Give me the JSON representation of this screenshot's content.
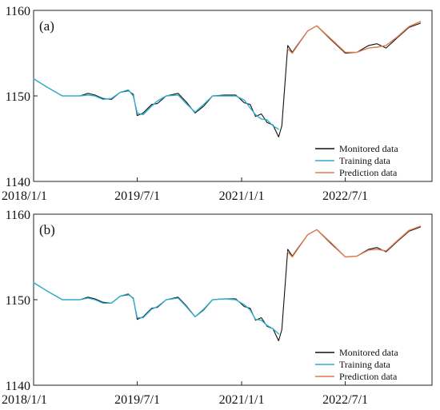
{
  "chart_data": [
    {
      "panel_label": "(a)",
      "type": "line",
      "x_type": "date",
      "xlim": [
        "2018-01-01",
        "2023-10-01"
      ],
      "ylim": [
        1140,
        1160
      ],
      "yticks": [
        1140,
        1150,
        1160
      ],
      "xticks": [
        "2018/1/1",
        "2019/7/1",
        "2021/1/1",
        "2022/7/1"
      ],
      "xtick_dates": [
        "2018-01-01",
        "2019-07-01",
        "2021-01-01",
        "2022-07-01"
      ],
      "grid": false,
      "legend_position": "bottom-right",
      "series": [
        {
          "name": "Monitored data",
          "color": "#111111",
          "points": [
            [
              "2018-01-01",
              1152.0
            ],
            [
              "2018-03-15",
              1151.0
            ],
            [
              "2018-06-01",
              1150.0
            ],
            [
              "2018-09-01",
              1150.0
            ],
            [
              "2018-10-15",
              1150.3
            ],
            [
              "2018-11-20",
              1150.1
            ],
            [
              "2019-01-01",
              1149.7
            ],
            [
              "2019-02-15",
              1149.6
            ],
            [
              "2019-04-01",
              1150.4
            ],
            [
              "2019-05-15",
              1150.6
            ],
            [
              "2019-06-10",
              1150.2
            ],
            [
              "2019-07-01",
              1147.7
            ],
            [
              "2019-08-01",
              1148.0
            ],
            [
              "2019-09-15",
              1149.0
            ],
            [
              "2019-10-15",
              1149.1
            ],
            [
              "2019-12-01",
              1150.0
            ],
            [
              "2020-02-01",
              1150.3
            ],
            [
              "2020-03-15",
              1149.3
            ],
            [
              "2020-05-01",
              1148.0
            ],
            [
              "2020-06-15",
              1148.8
            ],
            [
              "2020-08-01",
              1150.0
            ],
            [
              "2020-10-01",
              1150.1
            ],
            [
              "2020-12-01",
              1150.1
            ],
            [
              "2021-01-15",
              1149.2
            ],
            [
              "2021-02-15",
              1149.0
            ],
            [
              "2021-03-15",
              1147.6
            ],
            [
              "2021-04-15",
              1147.9
            ],
            [
              "2021-05-15",
              1146.9
            ],
            [
              "2021-06-15",
              1146.6
            ],
            [
              "2021-07-15",
              1145.2
            ],
            [
              "2021-08-01",
              1146.5
            ],
            [
              "2021-09-01",
              1155.9
            ],
            [
              "2021-09-25",
              1155.1
            ],
            [
              "2021-10-20",
              1155.9
            ],
            [
              "2021-12-15",
              1157.6
            ],
            [
              "2022-02-01",
              1158.2
            ],
            [
              "2022-04-15",
              1156.6
            ],
            [
              "2022-07-01",
              1155.0
            ],
            [
              "2022-09-01",
              1155.1
            ],
            [
              "2022-11-01",
              1155.9
            ],
            [
              "2022-12-15",
              1156.1
            ],
            [
              "2023-02-01",
              1155.6
            ],
            [
              "2023-04-01",
              1156.8
            ],
            [
              "2023-06-01",
              1158.0
            ],
            [
              "2023-08-01",
              1158.5
            ]
          ]
        },
        {
          "name": "Training data",
          "color": "#2eaed0",
          "points": [
            [
              "2018-01-01",
              1152.0
            ],
            [
              "2018-03-15",
              1151.0
            ],
            [
              "2018-06-01",
              1150.0
            ],
            [
              "2018-09-01",
              1150.0
            ],
            [
              "2018-10-15",
              1150.1
            ],
            [
              "2018-11-20",
              1150.0
            ],
            [
              "2019-01-01",
              1149.6
            ],
            [
              "2019-02-15",
              1149.7
            ],
            [
              "2019-04-01",
              1150.4
            ],
            [
              "2019-05-15",
              1150.7
            ],
            [
              "2019-06-10",
              1150.0
            ],
            [
              "2019-07-01",
              1148.0
            ],
            [
              "2019-08-01",
              1147.8
            ],
            [
              "2019-09-15",
              1148.8
            ],
            [
              "2019-10-15",
              1149.4
            ],
            [
              "2019-12-01",
              1150.0
            ],
            [
              "2020-02-01",
              1150.1
            ],
            [
              "2020-03-15",
              1149.1
            ],
            [
              "2020-05-01",
              1148.1
            ],
            [
              "2020-06-15",
              1149.0
            ],
            [
              "2020-08-01",
              1150.0
            ],
            [
              "2020-10-01",
              1150.0
            ],
            [
              "2020-12-01",
              1150.0
            ],
            [
              "2021-01-15",
              1149.5
            ],
            [
              "2021-02-15",
              1148.6
            ],
            [
              "2021-03-15",
              1147.8
            ],
            [
              "2021-04-15",
              1147.3
            ],
            [
              "2021-05-15",
              1147.2
            ],
            [
              "2021-06-15",
              1146.5
            ],
            [
              "2021-07-15",
              1146.1
            ]
          ]
        },
        {
          "name": "Prediction data",
          "color": "#e07a4a",
          "points": [
            [
              "2021-09-01",
              1155.5
            ],
            [
              "2021-09-25",
              1155.0
            ],
            [
              "2021-10-20",
              1155.8
            ],
            [
              "2021-12-15",
              1157.6
            ],
            [
              "2022-02-01",
              1158.2
            ],
            [
              "2022-04-15",
              1156.7
            ],
            [
              "2022-07-01",
              1155.1
            ],
            [
              "2022-09-01",
              1155.1
            ],
            [
              "2022-11-01",
              1155.6
            ],
            [
              "2022-12-15",
              1155.7
            ],
            [
              "2023-02-01",
              1155.9
            ],
            [
              "2023-04-01",
              1156.9
            ],
            [
              "2023-06-01",
              1158.1
            ],
            [
              "2023-08-01",
              1158.7
            ]
          ]
        }
      ]
    },
    {
      "panel_label": "(b)",
      "type": "line",
      "x_type": "date",
      "xlim": [
        "2018-01-01",
        "2023-10-01"
      ],
      "ylim": [
        1140,
        1160
      ],
      "yticks": [
        1140,
        1150,
        1160
      ],
      "xticks": [
        "2018/1/1",
        "2019/7/1",
        "2021/1/1",
        "2022/7/1"
      ],
      "xtick_dates": [
        "2018-01-01",
        "2019-07-01",
        "2021-01-01",
        "2022-07-01"
      ],
      "grid": false,
      "legend_position": "bottom-right",
      "series": [
        {
          "name": "Monitored data",
          "color": "#111111",
          "points": [
            [
              "2018-01-01",
              1152.0
            ],
            [
              "2018-03-15",
              1151.0
            ],
            [
              "2018-06-01",
              1150.0
            ],
            [
              "2018-09-01",
              1150.0
            ],
            [
              "2018-10-15",
              1150.3
            ],
            [
              "2018-11-20",
              1150.1
            ],
            [
              "2019-01-01",
              1149.7
            ],
            [
              "2019-02-15",
              1149.6
            ],
            [
              "2019-04-01",
              1150.4
            ],
            [
              "2019-05-15",
              1150.6
            ],
            [
              "2019-06-10",
              1150.2
            ],
            [
              "2019-07-01",
              1147.7
            ],
            [
              "2019-08-01",
              1148.0
            ],
            [
              "2019-09-15",
              1149.0
            ],
            [
              "2019-10-15",
              1149.1
            ],
            [
              "2019-12-01",
              1150.0
            ],
            [
              "2020-02-01",
              1150.3
            ],
            [
              "2020-03-15",
              1149.3
            ],
            [
              "2020-05-01",
              1148.0
            ],
            [
              "2020-06-15",
              1148.8
            ],
            [
              "2020-08-01",
              1150.0
            ],
            [
              "2020-10-01",
              1150.1
            ],
            [
              "2020-12-01",
              1150.1
            ],
            [
              "2021-01-15",
              1149.2
            ],
            [
              "2021-02-15",
              1149.0
            ],
            [
              "2021-03-15",
              1147.6
            ],
            [
              "2021-04-15",
              1147.9
            ],
            [
              "2021-05-15",
              1146.9
            ],
            [
              "2021-06-15",
              1146.6
            ],
            [
              "2021-07-15",
              1145.2
            ],
            [
              "2021-08-01",
              1146.5
            ],
            [
              "2021-09-01",
              1155.9
            ],
            [
              "2021-09-25",
              1155.1
            ],
            [
              "2021-10-20",
              1155.9
            ],
            [
              "2021-12-15",
              1157.6
            ],
            [
              "2022-02-01",
              1158.2
            ],
            [
              "2022-04-15",
              1156.6
            ],
            [
              "2022-07-01",
              1155.0
            ],
            [
              "2022-09-01",
              1155.1
            ],
            [
              "2022-11-01",
              1155.9
            ],
            [
              "2022-12-15",
              1156.1
            ],
            [
              "2023-02-01",
              1155.6
            ],
            [
              "2023-04-01",
              1156.8
            ],
            [
              "2023-06-01",
              1158.0
            ],
            [
              "2023-08-01",
              1158.5
            ]
          ]
        },
        {
          "name": "Training data",
          "color": "#2eaed0",
          "points": [
            [
              "2018-01-01",
              1152.0
            ],
            [
              "2018-03-15",
              1151.0
            ],
            [
              "2018-06-01",
              1150.0
            ],
            [
              "2018-09-01",
              1150.0
            ],
            [
              "2018-10-15",
              1150.2
            ],
            [
              "2018-11-20",
              1150.0
            ],
            [
              "2019-01-01",
              1149.6
            ],
            [
              "2019-02-15",
              1149.6
            ],
            [
              "2019-04-01",
              1150.4
            ],
            [
              "2019-05-15",
              1150.7
            ],
            [
              "2019-06-10",
              1150.1
            ],
            [
              "2019-07-01",
              1147.9
            ],
            [
              "2019-08-01",
              1147.9
            ],
            [
              "2019-09-15",
              1148.9
            ],
            [
              "2019-10-15",
              1149.2
            ],
            [
              "2019-12-01",
              1150.0
            ],
            [
              "2020-02-01",
              1150.2
            ],
            [
              "2020-03-15",
              1149.2
            ],
            [
              "2020-05-01",
              1148.0
            ],
            [
              "2020-06-15",
              1148.9
            ],
            [
              "2020-08-01",
              1150.0
            ],
            [
              "2020-10-01",
              1150.1
            ],
            [
              "2020-12-01",
              1150.0
            ],
            [
              "2021-01-15",
              1149.4
            ],
            [
              "2021-02-15",
              1148.8
            ],
            [
              "2021-03-15",
              1147.7
            ],
            [
              "2021-04-15",
              1147.6
            ],
            [
              "2021-05-15",
              1147.0
            ],
            [
              "2021-06-15",
              1146.6
            ],
            [
              "2021-07-15",
              1146.0
            ]
          ]
        },
        {
          "name": "Prediction data",
          "color": "#e07a4a",
          "points": [
            [
              "2021-09-01",
              1155.6
            ],
            [
              "2021-09-25",
              1155.0
            ],
            [
              "2021-10-20",
              1155.8
            ],
            [
              "2021-12-15",
              1157.6
            ],
            [
              "2022-02-01",
              1158.2
            ],
            [
              "2022-04-15",
              1156.7
            ],
            [
              "2022-07-01",
              1155.0
            ],
            [
              "2022-09-01",
              1155.1
            ],
            [
              "2022-11-01",
              1155.8
            ],
            [
              "2022-12-15",
              1155.9
            ],
            [
              "2023-02-01",
              1155.7
            ],
            [
              "2023-04-01",
              1156.9
            ],
            [
              "2023-06-01",
              1158.1
            ],
            [
              "2023-08-01",
              1158.6
            ]
          ]
        }
      ]
    }
  ]
}
